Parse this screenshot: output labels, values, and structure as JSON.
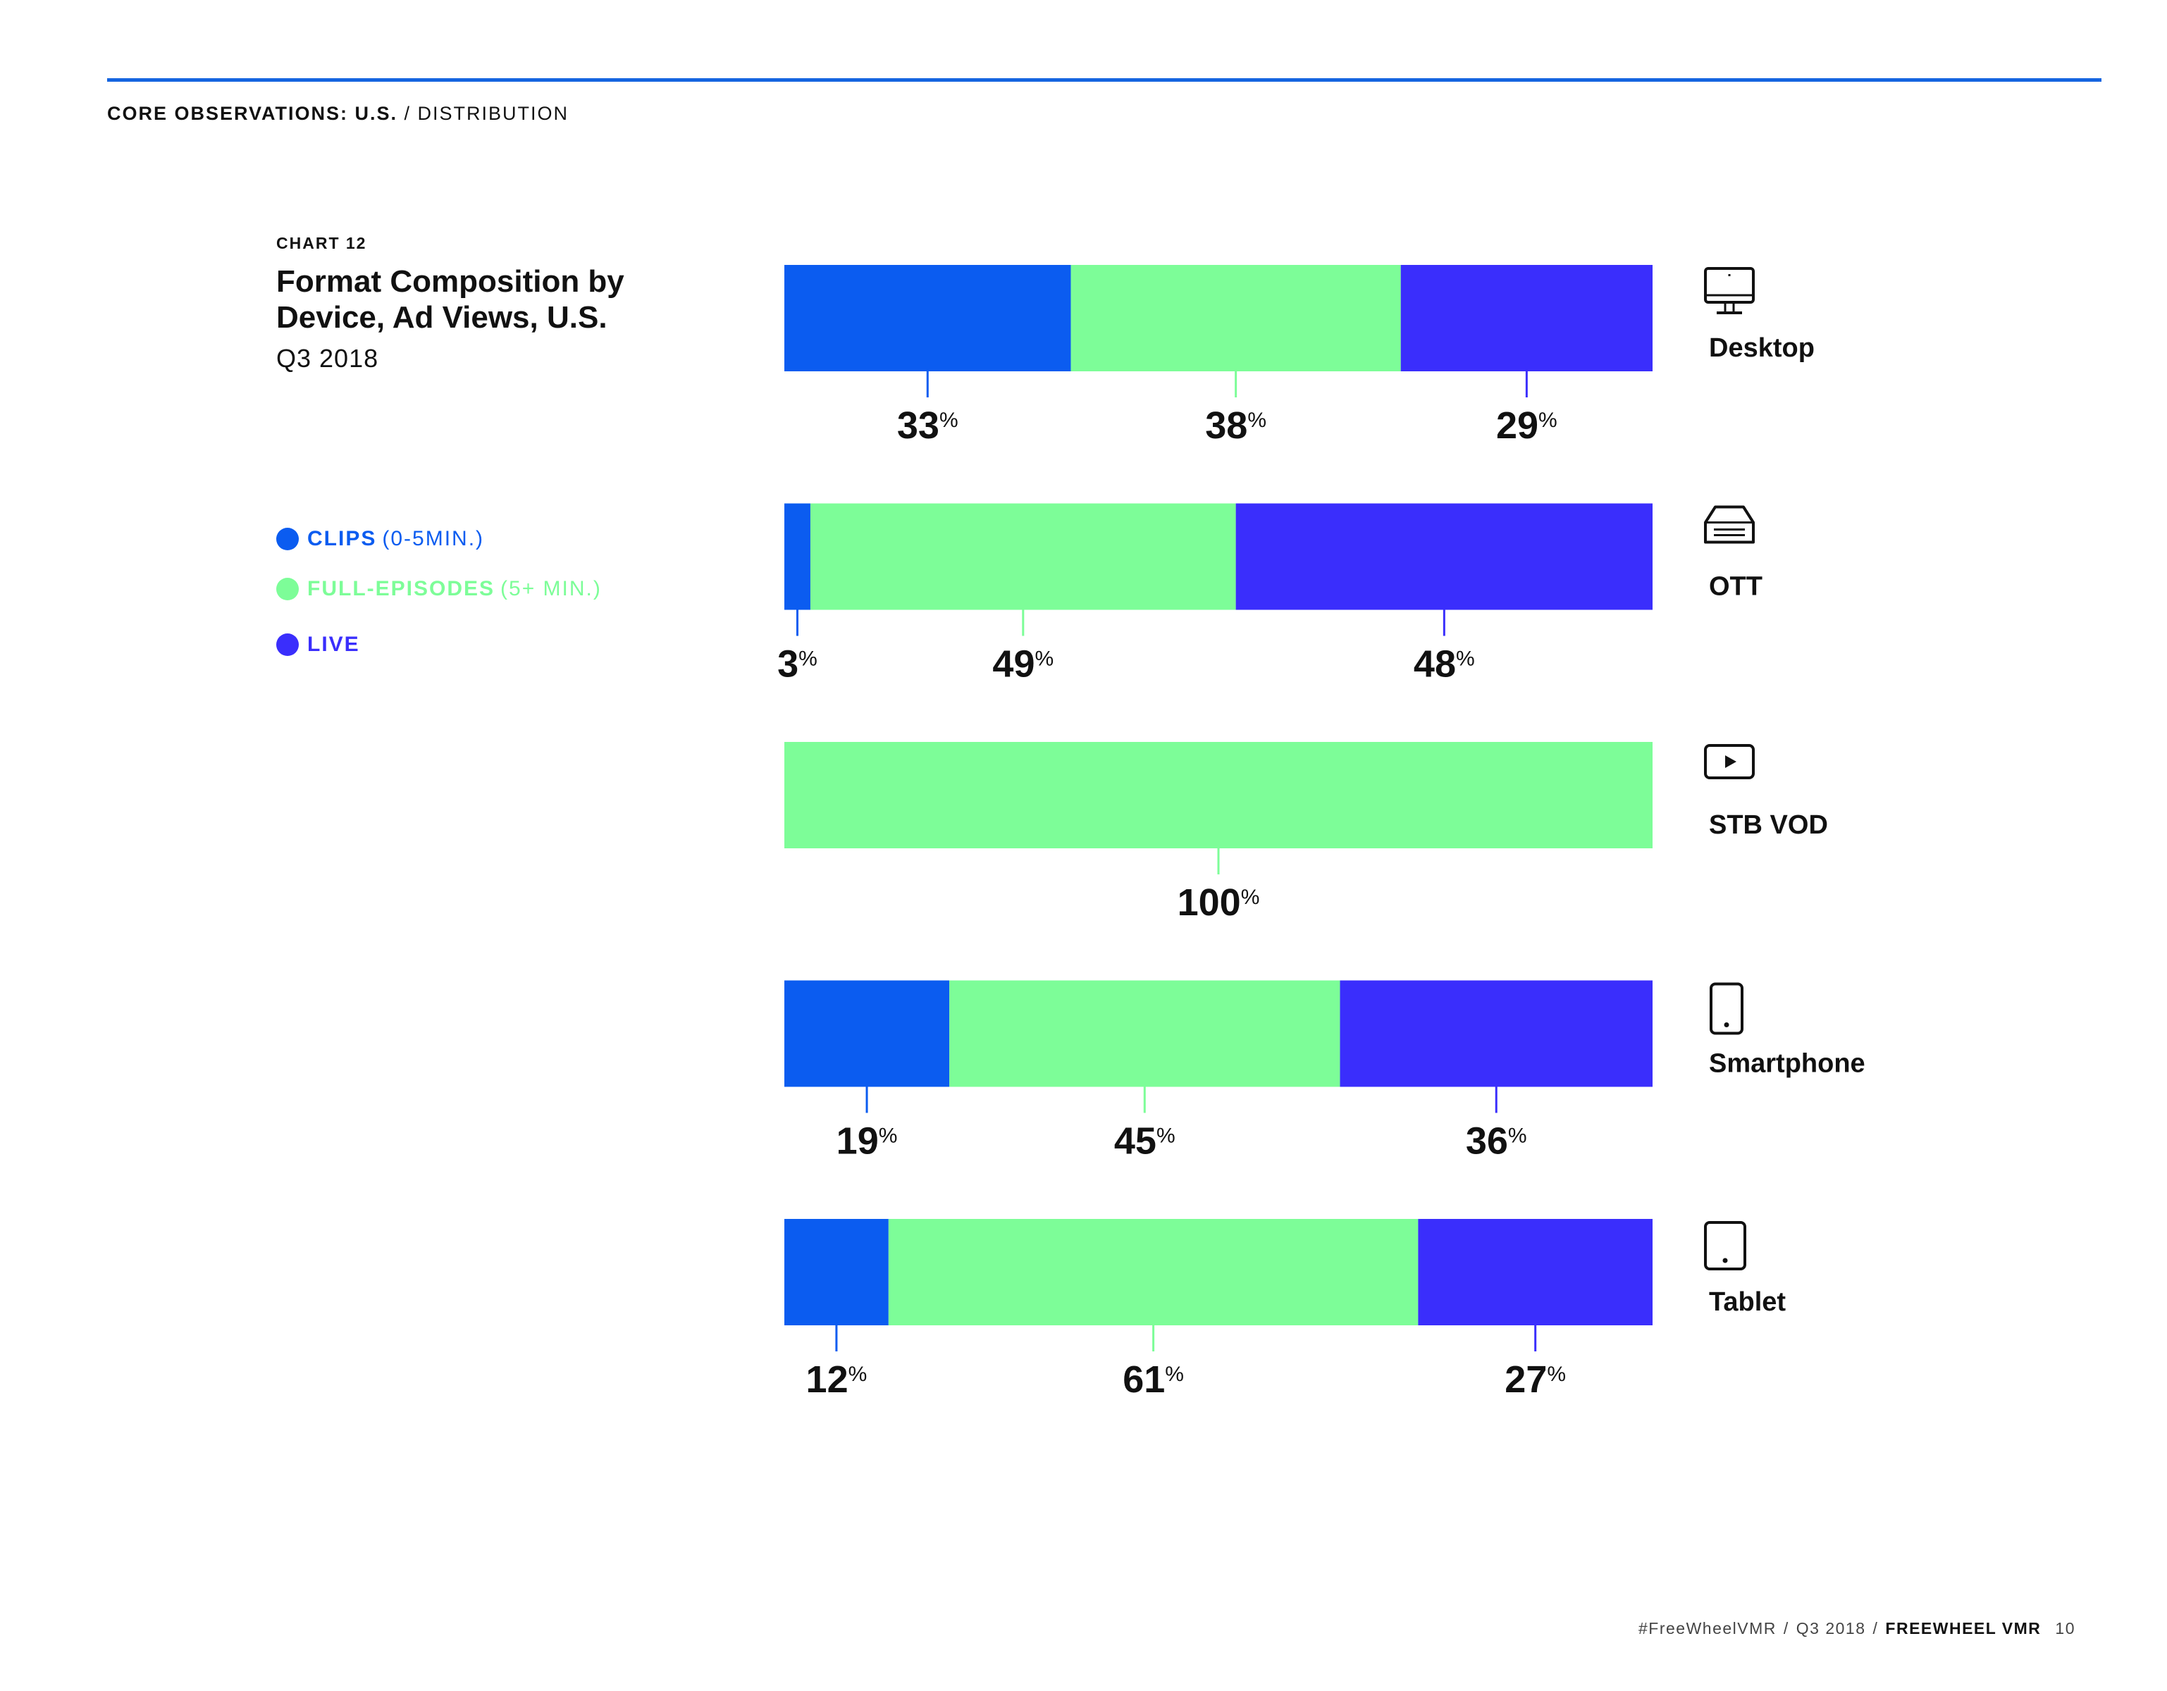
{
  "header": {
    "section_strong": "CORE OBSERVATIONS: U.S.",
    "section_rest": " / DISTRIBUTION"
  },
  "colors": {
    "rule": "#1565e0",
    "clips": "#0b5cf0",
    "full_episodes": "#7dfd98",
    "live": "#3a2efc",
    "text": "#111111"
  },
  "chart_header": {
    "number": "CHART 12",
    "title": "Format Composition by Device, Ad Views, U.S.",
    "subtitle": "Q3 2018"
  },
  "legend": [
    {
      "name": "CLIPS",
      "note": "(0-5MIN.)",
      "color_key": "clips"
    },
    {
      "name": "FULL-EPISODES",
      "note": "(5+ MIN.)",
      "color_key": "full_episodes"
    },
    {
      "name": "LIVE",
      "note": "",
      "color_key": "live"
    }
  ],
  "chart_data": {
    "type": "bar",
    "orientation": "horizontal",
    "stacked": true,
    "normalized": true,
    "value_unit": "%",
    "title": "Format Composition by Device, Ad Views, U.S.",
    "subtitle": "Q3 2018",
    "categories": [
      "Desktop",
      "OTT",
      "STB VOD",
      "Smartphone",
      "Tablet"
    ],
    "category_icons": [
      "desktop-monitor-icon",
      "ott-box-icon",
      "play-screen-icon",
      "smartphone-icon",
      "tablet-icon"
    ],
    "series": [
      {
        "name": "CLIPS (0-5MIN.)",
        "color": "#0b5cf0",
        "values": [
          33,
          3,
          0,
          19,
          12
        ]
      },
      {
        "name": "FULL-EPISODES (5+ MIN.)",
        "color": "#7dfd98",
        "values": [
          38,
          49,
          100,
          45,
          61
        ]
      },
      {
        "name": "LIVE",
        "color": "#3a2efc",
        "values": [
          29,
          48,
          0,
          36,
          27
        ]
      }
    ],
    "xlim": [
      0,
      100
    ],
    "legend_position": "left",
    "grid": false
  },
  "footer": {
    "hashtag": "#FreeWheelVMR",
    "period": "Q3 2018",
    "brand": "FREEWHEEL VMR",
    "page": "10"
  }
}
